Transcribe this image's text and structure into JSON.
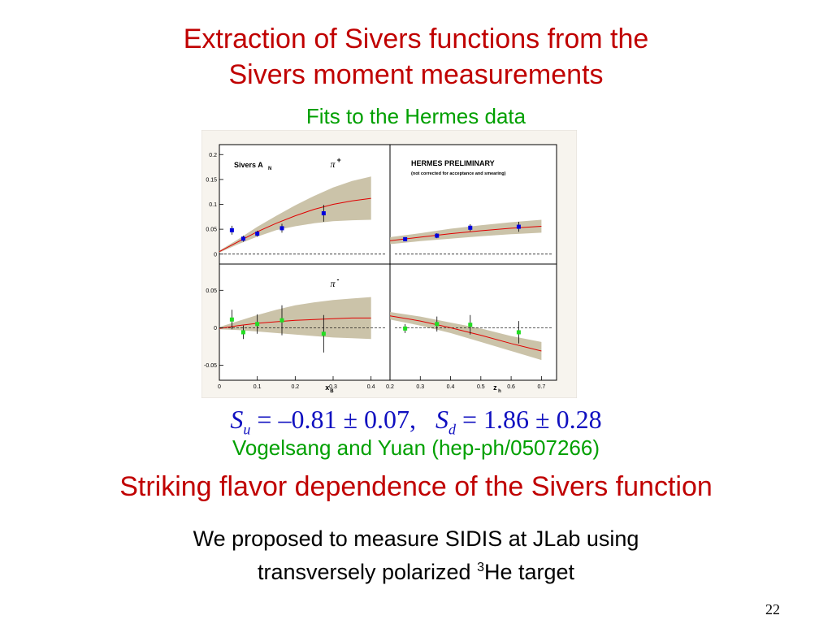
{
  "slide": {
    "title_line1": "Extraction of Sivers functions from the",
    "title_line2": "Sivers moment measurements",
    "subtitle": "Fits to the Hermes data",
    "formula": {
      "su_symbol": "S",
      "su_sub": "u",
      "su_value": " = –0.81 ± 0.07,",
      "sd_symbol": "S",
      "sd_sub": "d",
      "sd_value": " = 1.86 ± 0.28"
    },
    "citation": "Vogelsang and Yuan (hep-ph/0507266)",
    "headline": "Striking flavor dependence of the Sivers function",
    "note_line1": "We proposed to measure SIDIS at JLab using",
    "note_line2_pre": "transversely polarized ",
    "note_sup": "3",
    "note_line2_post": "He target",
    "page_number": "22"
  },
  "chart_data": [
    {
      "type": "scatter",
      "panel": "top-left",
      "label": "Sivers A",
      "label_sub": "N",
      "particle": "π",
      "particle_sup": "+",
      "xlim": [
        0,
        0.45
      ],
      "ylim": [
        -0.02,
        0.22
      ],
      "x_ticks": [],
      "y_ticks": [
        "0",
        "0.05",
        "0.1",
        "0.15",
        "0.2"
      ],
      "marker_color": "#0000dd",
      "points": [
        {
          "x": 0.033,
          "y": 0.048,
          "err": 0.009
        },
        {
          "x": 0.063,
          "y": 0.031,
          "err": 0.006
        },
        {
          "x": 0.1,
          "y": 0.041,
          "err": 0.006
        },
        {
          "x": 0.165,
          "y": 0.052,
          "err": 0.009
        },
        {
          "x": 0.275,
          "y": 0.082,
          "err": 0.017
        }
      ],
      "fit": {
        "x": [
          0.0,
          0.05,
          0.1,
          0.15,
          0.2,
          0.25,
          0.3,
          0.35,
          0.4
        ],
        "y": [
          0.005,
          0.025,
          0.045,
          0.062,
          0.077,
          0.09,
          0.1,
          0.107,
          0.112
        ]
      },
      "band": {
        "x": [
          0.0,
          0.05,
          0.1,
          0.15,
          0.2,
          0.25,
          0.3,
          0.35,
          0.4
        ],
        "lo": [
          0.003,
          0.02,
          0.035,
          0.048,
          0.056,
          0.062,
          0.066,
          0.068,
          0.069
        ],
        "hi": [
          0.007,
          0.03,
          0.055,
          0.077,
          0.098,
          0.117,
          0.134,
          0.147,
          0.156
        ]
      }
    },
    {
      "type": "scatter",
      "panel": "top-right",
      "label": "HERMES PRELIMINARY",
      "note": "(not corrected for acceptance and smearing)",
      "xlim": [
        0.2,
        0.75
      ],
      "ylim": [
        -0.02,
        0.22
      ],
      "x_ticks": [],
      "y_ticks": [],
      "marker_color": "#0000dd",
      "points": [
        {
          "x": 0.25,
          "y": 0.03,
          "err": 0.004
        },
        {
          "x": 0.355,
          "y": 0.037,
          "err": 0.005
        },
        {
          "x": 0.465,
          "y": 0.053,
          "err": 0.007
        },
        {
          "x": 0.625,
          "y": 0.055,
          "err": 0.01
        }
      ],
      "fit": {
        "x": [
          0.2,
          0.3,
          0.4,
          0.5,
          0.6,
          0.7
        ],
        "y": [
          0.027,
          0.034,
          0.041,
          0.047,
          0.052,
          0.056
        ]
      },
      "band": {
        "x": [
          0.2,
          0.3,
          0.4,
          0.5,
          0.6,
          0.7
        ],
        "lo": [
          0.02,
          0.026,
          0.031,
          0.036,
          0.04,
          0.043
        ],
        "hi": [
          0.034,
          0.042,
          0.051,
          0.058,
          0.064,
          0.069
        ]
      }
    },
    {
      "type": "scatter",
      "panel": "bottom-left",
      "particle": "π",
      "particle_sup": "-",
      "xlabel": "x",
      "xlabel_sub": "B",
      "xlim": [
        0,
        0.45
      ],
      "ylim": [
        -0.07,
        0.085
      ],
      "x_ticks": [
        "0",
        "0.1",
        "0.2",
        "0.3",
        "0.4"
      ],
      "y_ticks": [
        "-0.05",
        "0",
        "0.05"
      ],
      "marker_color": "#22dd22",
      "points": [
        {
          "x": 0.033,
          "y": 0.011,
          "err": 0.013
        },
        {
          "x": 0.063,
          "y": -0.006,
          "err": 0.009
        },
        {
          "x": 0.1,
          "y": 0.005,
          "err": 0.013
        },
        {
          "x": 0.165,
          "y": 0.01,
          "err": 0.02
        },
        {
          "x": 0.275,
          "y": -0.008,
          "err": 0.025
        }
      ],
      "fit": {
        "x": [
          0.0,
          0.05,
          0.1,
          0.15,
          0.2,
          0.25,
          0.3,
          0.35,
          0.4
        ],
        "y": [
          -0.001,
          0.003,
          0.006,
          0.008,
          0.01,
          0.011,
          0.012,
          0.013,
          0.013
        ]
      },
      "band": {
        "x": [
          0.0,
          0.05,
          0.1,
          0.15,
          0.2,
          0.25,
          0.3,
          0.35,
          0.4
        ],
        "lo": [
          -0.002,
          -0.003,
          -0.005,
          -0.007,
          -0.009,
          -0.011,
          -0.013,
          -0.014,
          -0.015
        ],
        "hi": [
          0.001,
          0.009,
          0.017,
          0.024,
          0.03,
          0.034,
          0.037,
          0.039,
          0.041
        ]
      }
    },
    {
      "type": "scatter",
      "panel": "bottom-right",
      "xlabel": "z",
      "xlabel_sub": "h",
      "xlim": [
        0.2,
        0.75
      ],
      "ylim": [
        -0.07,
        0.085
      ],
      "x_ticks": [
        "0.2",
        "0.3",
        "0.4",
        "0.5",
        "0.6",
        "0.7"
      ],
      "y_ticks": [],
      "marker_color": "#22dd22",
      "points": [
        {
          "x": 0.25,
          "y": -0.001,
          "err": 0.006
        },
        {
          "x": 0.355,
          "y": 0.005,
          "err": 0.01
        },
        {
          "x": 0.465,
          "y": 0.004,
          "err": 0.013
        },
        {
          "x": 0.625,
          "y": -0.006,
          "err": 0.015
        }
      ],
      "fit": {
        "x": [
          0.2,
          0.3,
          0.4,
          0.5,
          0.6,
          0.7
        ],
        "y": [
          0.016,
          0.009,
          0.0,
          -0.01,
          -0.021,
          -0.031
        ]
      },
      "band": {
        "x": [
          0.2,
          0.3,
          0.4,
          0.5,
          0.6,
          0.7
        ],
        "lo": [
          0.011,
          0.003,
          -0.007,
          -0.019,
          -0.031,
          -0.043
        ],
        "hi": [
          0.021,
          0.015,
          0.007,
          -0.001,
          -0.011,
          -0.019
        ]
      }
    }
  ]
}
